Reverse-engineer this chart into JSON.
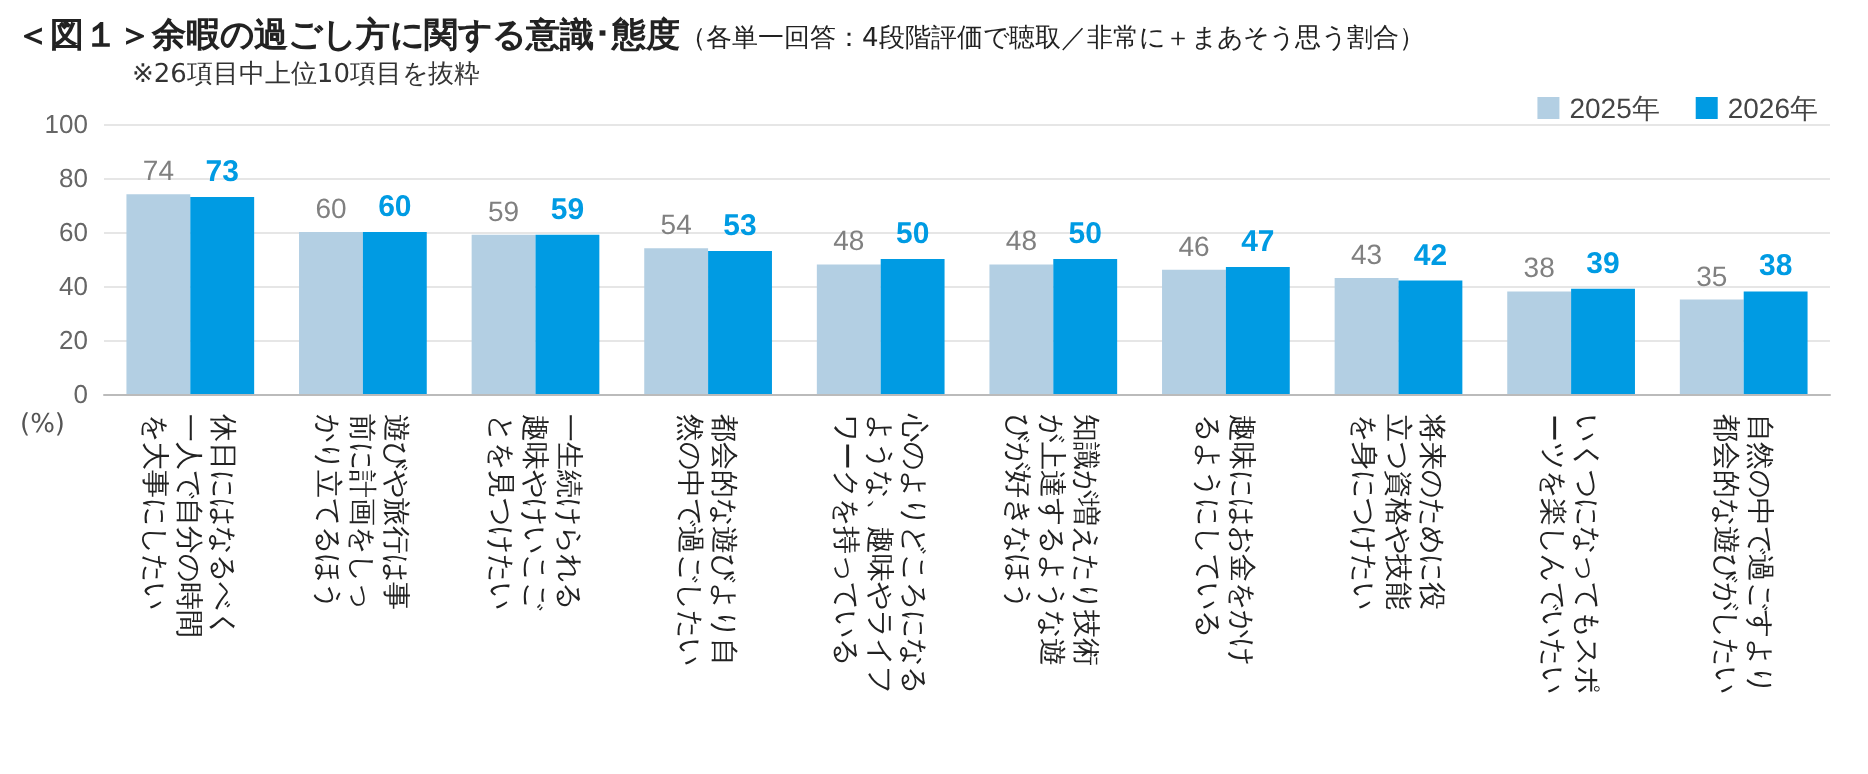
{
  "chart_data": {
    "type": "bar",
    "title": "＜図１＞余暇の過ごし方に関する意識･態度",
    "subtitle": "（各単一回答：4段階評価で聴取／非常に＋まあそう思う割合）",
    "annotations": [
      "※26項目中上位10項目を抜粋"
    ],
    "ylabel": "(%)",
    "categories": [
      "休日にはなるべく一人で自分の時間を大事にしたい",
      "遊びや旅行は事前に計画をしっかり立てるほう",
      "一生続けられる趣味やけいこごとを見つけたい",
      "都会的な遊びより自然の中で過ごしたい",
      "心のよりどころになるような、趣味やライフワークを持っている",
      "知識が増えたり技術が上達するような遊びが好きなほう",
      "趣味にはお金をかけるようにしている",
      "将来のために役立つ資格や技能を身につけたい",
      "いくつになってもスポーツを楽しんでいたい",
      "自然の中で過ごすより都会的な遊びがしたい"
    ],
    "series": [
      {
        "name": "2025年",
        "color": "#b3cfe3",
        "values": [
          74,
          60,
          59,
          54,
          48,
          48,
          46,
          43,
          38,
          35
        ]
      },
      {
        "name": "2026年",
        "color": "#009be3",
        "values": [
          73,
          60,
          59,
          53,
          50,
          50,
          47,
          42,
          39,
          38
        ]
      }
    ],
    "ylim": [
      0,
      100
    ],
    "yticks": [
      0,
      20,
      40,
      60,
      80,
      100
    ],
    "grid": "y",
    "legend": "top right",
    "data_labels": true
  }
}
